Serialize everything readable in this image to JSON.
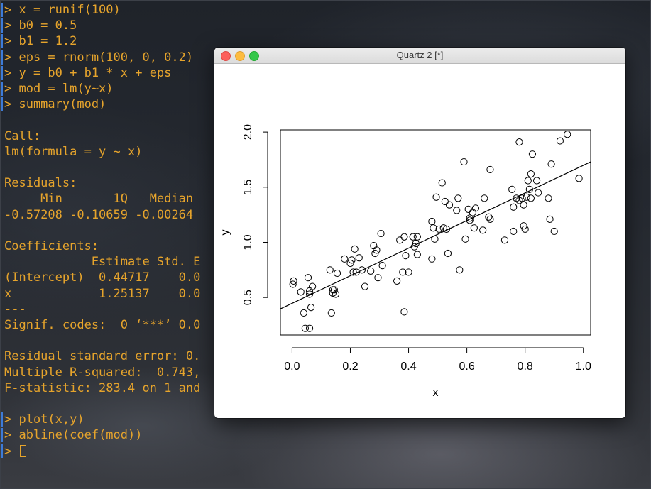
{
  "terminal": {
    "lines": [
      {
        "text": "> x = runif(100)",
        "prompt": true
      },
      {
        "text": "> b0 = 0.5",
        "prompt": true
      },
      {
        "text": "> b1 = 1.2",
        "prompt": true
      },
      {
        "text": "> eps = rnorm(100, 0, 0.2)",
        "prompt": true
      },
      {
        "text": "> y = b0 + b1 * x + eps",
        "prompt": true
      },
      {
        "text": "> mod = lm(y~x)",
        "prompt": true
      },
      {
        "text": "> summary(mod)",
        "prompt": true
      },
      {
        "text": "",
        "prompt": false
      },
      {
        "text": "Call:",
        "prompt": false
      },
      {
        "text": "lm(formula = y ~ x)",
        "prompt": false
      },
      {
        "text": "",
        "prompt": false
      },
      {
        "text": "Residuals:",
        "prompt": false
      },
      {
        "text": "     Min       1Q   Median",
        "prompt": false
      },
      {
        "text": "-0.57208 -0.10659 -0.00264",
        "prompt": false
      },
      {
        "text": "",
        "prompt": false
      },
      {
        "text": "Coefficients:",
        "prompt": false
      },
      {
        "text": "            Estimate Std. E",
        "prompt": false
      },
      {
        "text": "(Intercept)  0.44717    0.0",
        "prompt": false
      },
      {
        "text": "x            1.25137    0.0",
        "prompt": false
      },
      {
        "text": "---",
        "prompt": false
      },
      {
        "text": "Signif. codes:  0 ‘***’ 0.0",
        "prompt": false
      },
      {
        "text": "",
        "prompt": false
      },
      {
        "text": "Residual standard error: 0.",
        "prompt": false
      },
      {
        "text": "Multiple R-squared:  0.743,",
        "prompt": false
      },
      {
        "text": "F-statistic: 283.4 on 1 and",
        "prompt": false
      },
      {
        "text": "",
        "prompt": false
      },
      {
        "text": "> plot(x,y)",
        "prompt": true
      },
      {
        "text": "> abline(coef(mod))",
        "prompt": true
      },
      {
        "text": "> ",
        "prompt": true,
        "cursor": true
      }
    ],
    "text_color": "#e6a42c",
    "prompt_marker_color": "#3d7bd8"
  },
  "window": {
    "title": "Quartz 2 [*]"
  },
  "chart_data": {
    "type": "scatter",
    "xlabel": "x",
    "ylabel": "y",
    "xlim": [
      -0.04,
      1.025
    ],
    "ylim": [
      0.16,
      2.02
    ],
    "xticks": [
      "0.0",
      "0.2",
      "0.4",
      "0.6",
      "0.8",
      "1.0"
    ],
    "xtick_values": [
      0,
      0.2,
      0.4,
      0.6,
      0.8,
      1.0
    ],
    "yticks": [
      "0.5",
      "1.0",
      "1.5",
      "2.0"
    ],
    "ytick_values": [
      0.5,
      1.0,
      1.5,
      2.0
    ],
    "fit_line": {
      "intercept": 0.44717,
      "slope": 1.25137
    },
    "points": [
      [
        0.003,
        0.62
      ],
      [
        0.005,
        0.65
      ],
      [
        0.03,
        0.55
      ],
      [
        0.04,
        0.36
      ],
      [
        0.045,
        0.22
      ],
      [
        0.055,
        0.68
      ],
      [
        0.06,
        0.22
      ],
      [
        0.06,
        0.53
      ],
      [
        0.06,
        0.56
      ],
      [
        0.065,
        0.41
      ],
      [
        0.07,
        0.6
      ],
      [
        0.13,
        0.75
      ],
      [
        0.135,
        0.36
      ],
      [
        0.14,
        0.54
      ],
      [
        0.14,
        0.57
      ],
      [
        0.145,
        0.57
      ],
      [
        0.15,
        0.53
      ],
      [
        0.155,
        0.72
      ],
      [
        0.18,
        0.85
      ],
      [
        0.2,
        0.81
      ],
      [
        0.205,
        0.84
      ],
      [
        0.21,
        0.73
      ],
      [
        0.215,
        0.94
      ],
      [
        0.22,
        0.73
      ],
      [
        0.23,
        0.86
      ],
      [
        0.24,
        0.75
      ],
      [
        0.25,
        0.6
      ],
      [
        0.27,
        0.74
      ],
      [
        0.28,
        0.97
      ],
      [
        0.285,
        0.9
      ],
      [
        0.29,
        0.93
      ],
      [
        0.295,
        0.68
      ],
      [
        0.305,
        1.08
      ],
      [
        0.31,
        0.79
      ],
      [
        0.36,
        0.65
      ],
      [
        0.37,
        1.02
      ],
      [
        0.38,
        0.73
      ],
      [
        0.385,
        0.37
      ],
      [
        0.385,
        1.05
      ],
      [
        0.39,
        0.88
      ],
      [
        0.4,
        0.73
      ],
      [
        0.415,
        1.05
      ],
      [
        0.42,
        0.96
      ],
      [
        0.425,
        0.99
      ],
      [
        0.43,
        1.05
      ],
      [
        0.43,
        0.89
      ],
      [
        0.48,
        0.85
      ],
      [
        0.48,
        1.19
      ],
      [
        0.485,
        1.13
      ],
      [
        0.49,
        1.03
      ],
      [
        0.495,
        1.41
      ],
      [
        0.505,
        1.12
      ],
      [
        0.515,
        1.54
      ],
      [
        0.52,
        1.13
      ],
      [
        0.525,
        1.37
      ],
      [
        0.53,
        1.12
      ],
      [
        0.535,
        0.9
      ],
      [
        0.54,
        1.34
      ],
      [
        0.565,
        1.29
      ],
      [
        0.57,
        1.4
      ],
      [
        0.575,
        0.75
      ],
      [
        0.59,
        1.73
      ],
      [
        0.595,
        1.03
      ],
      [
        0.605,
        1.3
      ],
      [
        0.61,
        1.2
      ],
      [
        0.61,
        1.22
      ],
      [
        0.62,
        1.27
      ],
      [
        0.625,
        1.13
      ],
      [
        0.63,
        1.31
      ],
      [
        0.655,
        1.11
      ],
      [
        0.66,
        1.4
      ],
      [
        0.675,
        1.23
      ],
      [
        0.68,
        1.21
      ],
      [
        0.68,
        1.66
      ],
      [
        0.73,
        1.02
      ],
      [
        0.755,
        1.48
      ],
      [
        0.76,
        1.32
      ],
      [
        0.76,
        1.1
      ],
      [
        0.77,
        1.4
      ],
      [
        0.78,
        1.38
      ],
      [
        0.78,
        1.91
      ],
      [
        0.79,
        1.4
      ],
      [
        0.795,
        1.15
      ],
      [
        0.795,
        1.34
      ],
      [
        0.8,
        1.12
      ],
      [
        0.805,
        1.41
      ],
      [
        0.81,
        1.56
      ],
      [
        0.815,
        1.48
      ],
      [
        0.82,
        1.62
      ],
      [
        0.825,
        1.8
      ],
      [
        0.84,
        1.56
      ],
      [
        0.845,
        1.45
      ],
      [
        0.88,
        1.4
      ],
      [
        0.885,
        1.21
      ],
      [
        0.89,
        1.71
      ],
      [
        0.9,
        1.1
      ],
      [
        0.92,
        1.92
      ],
      [
        0.945,
        1.98
      ],
      [
        0.985,
        1.58
      ],
      [
        0.82,
        1.4
      ]
    ]
  }
}
